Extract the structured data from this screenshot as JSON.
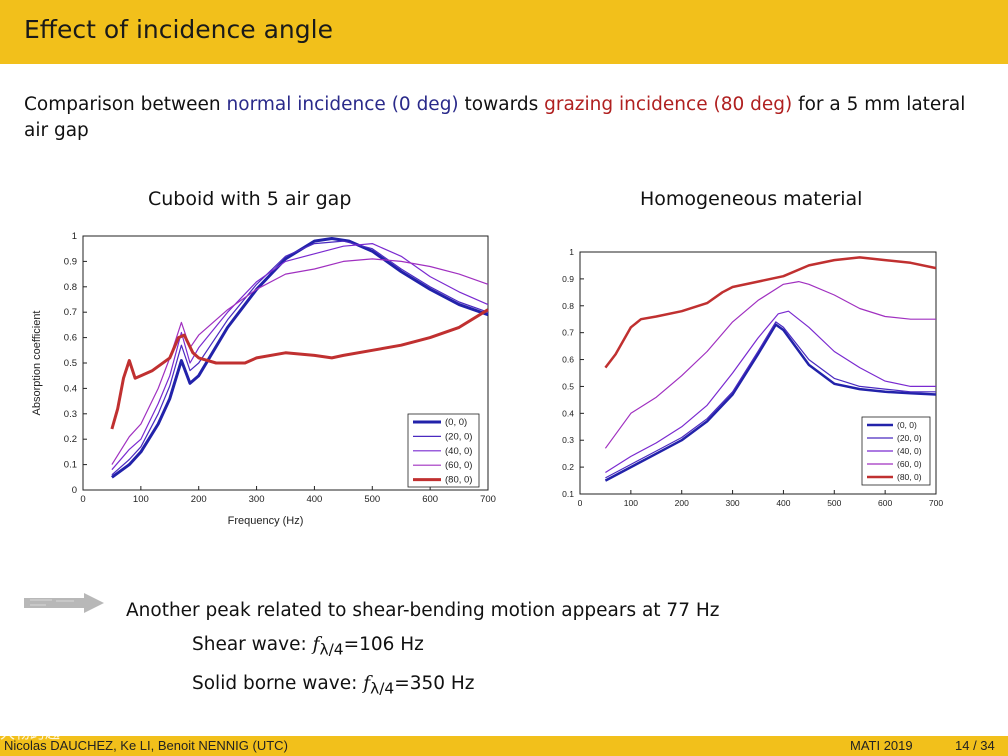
{
  "header": {
    "title": "Effect of incidence angle"
  },
  "intro": {
    "part1": "Comparison between ",
    "blue_text": "normal incidence (0 deg)",
    "part2": " towards ",
    "red_text": "grazing incidence (80 deg)",
    "part3": " for a 5 mm lateral air gap"
  },
  "chart_data": [
    {
      "type": "line",
      "title": "Cuboid with 5 air gap",
      "xlabel": "Frequency (Hz)",
      "ylabel": "Absorption coefficient",
      "xlim": [
        0,
        700
      ],
      "ylim": [
        0,
        1
      ],
      "xticks": [
        "0",
        "100",
        "200",
        "300",
        "400",
        "500",
        "600",
        "700"
      ],
      "yticks": [
        "0",
        "0.1",
        "0.2",
        "0.3",
        "0.4",
        "0.5",
        "0.6",
        "0.7",
        "0.8",
        "0.9",
        "1"
      ],
      "legend": [
        "(0, 0)",
        "(20, 0)",
        "(40, 0)",
        "(60, 0)",
        "(80, 0)"
      ],
      "series": [
        {
          "name": "(0, 0)",
          "color": "#2222aa",
          "width": 3,
          "x": [
            50,
            80,
            100,
            130,
            150,
            170,
            185,
            200,
            250,
            300,
            350,
            400,
            430,
            460,
            500,
            550,
            600,
            650,
            700
          ],
          "y": [
            0.05,
            0.1,
            0.15,
            0.26,
            0.36,
            0.51,
            0.42,
            0.45,
            0.64,
            0.79,
            0.91,
            0.98,
            0.99,
            0.98,
            0.94,
            0.86,
            0.79,
            0.73,
            0.69
          ]
        },
        {
          "name": "(20, 0)",
          "color": "#4a2ac0",
          "width": 1.2,
          "x": [
            50,
            80,
            100,
            130,
            150,
            170,
            185,
            200,
            250,
            300,
            350,
            400,
            450,
            500,
            550,
            600,
            650,
            700
          ],
          "y": [
            0.06,
            0.12,
            0.17,
            0.3,
            0.41,
            0.57,
            0.47,
            0.5,
            0.67,
            0.81,
            0.92,
            0.97,
            0.98,
            0.95,
            0.87,
            0.8,
            0.74,
            0.7
          ]
        },
        {
          "name": "(40, 0)",
          "color": "#7a2ad0",
          "width": 1.2,
          "x": [
            50,
            80,
            100,
            130,
            150,
            170,
            185,
            200,
            250,
            300,
            350,
            400,
            450,
            500,
            550,
            600,
            650,
            700
          ],
          "y": [
            0.08,
            0.16,
            0.2,
            0.34,
            0.45,
            0.62,
            0.5,
            0.56,
            0.7,
            0.82,
            0.9,
            0.93,
            0.96,
            0.97,
            0.92,
            0.84,
            0.78,
            0.73
          ]
        },
        {
          "name": "(60, 0)",
          "color": "#a030c0",
          "width": 1.2,
          "x": [
            50,
            80,
            100,
            130,
            150,
            170,
            185,
            200,
            250,
            300,
            350,
            400,
            450,
            500,
            550,
            600,
            650,
            700
          ],
          "y": [
            0.1,
            0.21,
            0.26,
            0.4,
            0.52,
            0.66,
            0.56,
            0.61,
            0.71,
            0.79,
            0.85,
            0.87,
            0.9,
            0.91,
            0.9,
            0.88,
            0.85,
            0.81
          ]
        },
        {
          "name": "(80, 0)",
          "color": "#c03030",
          "width": 3,
          "x": [
            50,
            60,
            70,
            80,
            90,
            100,
            120,
            150,
            165,
            175,
            190,
            200,
            230,
            250,
            280,
            300,
            350,
            400,
            430,
            450,
            500,
            550,
            600,
            650,
            700
          ],
          "y": [
            0.24,
            0.32,
            0.44,
            0.51,
            0.44,
            0.45,
            0.47,
            0.52,
            0.6,
            0.61,
            0.54,
            0.52,
            0.5,
            0.5,
            0.5,
            0.52,
            0.54,
            0.53,
            0.52,
            0.53,
            0.55,
            0.57,
            0.6,
            0.64,
            0.71
          ]
        }
      ]
    },
    {
      "type": "line",
      "title": "Homogeneous material",
      "xlabel": "",
      "ylabel": "",
      "xlim": [
        0,
        700
      ],
      "ylim": [
        0.1,
        1
      ],
      "xticks": [
        "0",
        "100",
        "200",
        "300",
        "400",
        "500",
        "600",
        "700"
      ],
      "yticks": [
        "0.1",
        "0.2",
        "0.3",
        "0.4",
        "0.5",
        "0.6",
        "0.7",
        "0.8",
        "0.9",
        "1"
      ],
      "legend": [
        "(0, 0)",
        "(20, 0)",
        "(40, 0)",
        "(60, 0)",
        "(80, 0)"
      ],
      "series": [
        {
          "name": "(0, 0)",
          "color": "#2222aa",
          "width": 2.5,
          "x": [
            50,
            100,
            150,
            200,
            250,
            300,
            350,
            385,
            400,
            450,
            500,
            550,
            600,
            650,
            700
          ],
          "y": [
            0.15,
            0.2,
            0.25,
            0.3,
            0.37,
            0.47,
            0.62,
            0.73,
            0.71,
            0.58,
            0.51,
            0.49,
            0.48,
            0.475,
            0.47
          ]
        },
        {
          "name": "(20, 0)",
          "color": "#4a2ac0",
          "width": 1.2,
          "x": [
            50,
            100,
            150,
            200,
            250,
            300,
            350,
            385,
            400,
            450,
            500,
            550,
            600,
            650,
            700
          ],
          "y": [
            0.16,
            0.21,
            0.26,
            0.31,
            0.38,
            0.48,
            0.63,
            0.74,
            0.72,
            0.6,
            0.53,
            0.5,
            0.49,
            0.48,
            0.48
          ]
        },
        {
          "name": "(40, 0)",
          "color": "#7a2ad0",
          "width": 1.2,
          "x": [
            50,
            100,
            150,
            200,
            250,
            300,
            350,
            390,
            410,
            450,
            500,
            550,
            600,
            650,
            700
          ],
          "y": [
            0.18,
            0.24,
            0.29,
            0.35,
            0.43,
            0.55,
            0.68,
            0.77,
            0.78,
            0.72,
            0.63,
            0.57,
            0.52,
            0.5,
            0.5
          ]
        },
        {
          "name": "(60, 0)",
          "color": "#a030c0",
          "width": 1.2,
          "x": [
            50,
            100,
            150,
            200,
            250,
            300,
            350,
            400,
            430,
            450,
            500,
            550,
            600,
            650,
            700
          ],
          "y": [
            0.27,
            0.4,
            0.46,
            0.54,
            0.63,
            0.74,
            0.82,
            0.88,
            0.89,
            0.88,
            0.84,
            0.79,
            0.76,
            0.75,
            0.75
          ]
        },
        {
          "name": "(80, 0)",
          "color": "#c03030",
          "width": 2.5,
          "x": [
            50,
            70,
            100,
            120,
            150,
            200,
            250,
            280,
            300,
            350,
            400,
            450,
            500,
            550,
            600,
            650,
            700
          ],
          "y": [
            0.57,
            0.62,
            0.72,
            0.75,
            0.76,
            0.78,
            0.81,
            0.85,
            0.87,
            0.89,
            0.91,
            0.95,
            0.97,
            0.98,
            0.97,
            0.96,
            0.94
          ]
        }
      ]
    }
  ],
  "notes": {
    "line1": "Another peak related to shear-bending motion appears at 77 Hz",
    "line2_prefix": "Shear wave: ",
    "line2_f": "f",
    "line2_sub": "λ/4",
    "line2_value": "=106 Hz",
    "line3_prefix": "Solid borne wave: ",
    "line3_f": "f",
    "line3_sub": "λ/4",
    "line3_value": "=350 Hz"
  },
  "footer": {
    "authors": "Nicolas DAUCHEZ, Ke LI, Benoit NENNIG (UTC)",
    "conference": "MATI 2019",
    "page": "14 / 34"
  },
  "watermark": "大物跨越"
}
